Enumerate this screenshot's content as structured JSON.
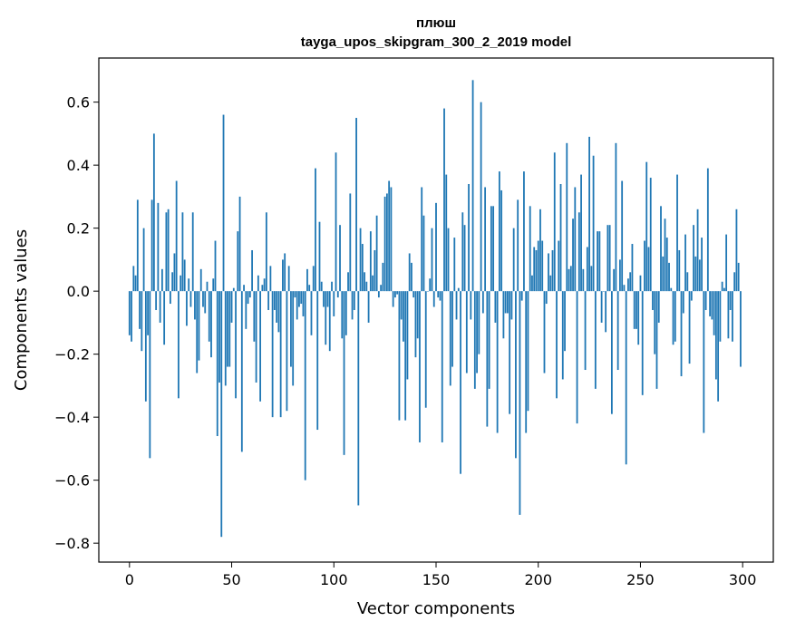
{
  "chart_data": {
    "type": "bar",
    "title": "плюш",
    "subtitle": "tayga_upos_skipgram_300_2_2019 model",
    "xlabel": "Vector components",
    "ylabel": "Components values",
    "xlim": [
      -15,
      315
    ],
    "ylim": [
      -0.86,
      0.74
    ],
    "xticks": [
      0,
      50,
      100,
      150,
      200,
      250,
      300
    ],
    "xtick_labels": [
      "0",
      "50",
      "100",
      "150",
      "200",
      "250",
      "300"
    ],
    "yticks": [
      -0.8,
      -0.6,
      -0.4,
      -0.2,
      0.0,
      0.2,
      0.4,
      0.6
    ],
    "ytick_labels": [
      "−0.8",
      "−0.6",
      "−0.4",
      "−0.2",
      "0.0",
      "0.2",
      "0.4",
      "0.6"
    ],
    "grid": false,
    "color": "#1f77b4",
    "x_start": 0,
    "values": [
      -0.14,
      -0.16,
      0.08,
      0.05,
      0.29,
      -0.12,
      -0.19,
      0.2,
      -0.35,
      -0.14,
      -0.53,
      0.29,
      0.5,
      -0.06,
      0.28,
      -0.1,
      0.07,
      -0.17,
      0.25,
      0.26,
      -0.04,
      0.06,
      0.12,
      0.35,
      -0.34,
      0.05,
      0.25,
      0.1,
      -0.11,
      0.04,
      -0.05,
      0.25,
      -0.09,
      -0.26,
      -0.22,
      0.07,
      -0.05,
      -0.07,
      0.03,
      -0.16,
      -0.21,
      0.04,
      0.16,
      -0.46,
      -0.29,
      -0.78,
      0.56,
      -0.3,
      -0.24,
      -0.24,
      -0.1,
      0.01,
      -0.34,
      0.19,
      0.3,
      -0.51,
      0.02,
      -0.12,
      -0.04,
      -0.02,
      0.13,
      -0.16,
      -0.29,
      0.05,
      -0.35,
      0.02,
      0.04,
      0.25,
      -0.06,
      0.08,
      -0.4,
      -0.06,
      -0.1,
      -0.13,
      -0.4,
      0.1,
      0.12,
      -0.38,
      0.08,
      -0.24,
      -0.3,
      -0.02,
      -0.09,
      -0.05,
      -0.04,
      -0.08,
      -0.6,
      0.07,
      0.02,
      -0.14,
      0.08,
      0.39,
      -0.44,
      0.22,
      0.03,
      -0.05,
      -0.17,
      -0.05,
      -0.19,
      0.03,
      -0.08,
      0.44,
      -0.02,
      0.21,
      -0.15,
      -0.52,
      -0.14,
      0.06,
      0.31,
      -0.09,
      -0.06,
      0.55,
      -0.68,
      0.2,
      0.15,
      0.06,
      0.03,
      -0.1,
      0.19,
      0.05,
      0.13,
      0.24,
      -0.02,
      0.02,
      0.09,
      0.3,
      0.31,
      0.35,
      0.33,
      -0.05,
      -0.02,
      -0.01,
      -0.41,
      -0.09,
      -0.16,
      -0.41,
      -0.28,
      0.12,
      0.09,
      -0.02,
      -0.21,
      -0.15,
      -0.48,
      0.33,
      0.24,
      -0.37,
      0.0,
      0.04,
      0.2,
      -0.05,
      0.28,
      -0.02,
      -0.03,
      -0.48,
      0.58,
      0.37,
      0.2,
      -0.3,
      -0.24,
      0.17,
      -0.09,
      0.01,
      -0.58,
      0.25,
      0.21,
      -0.26,
      0.34,
      -0.09,
      0.67,
      -0.31,
      -0.26,
      -0.2,
      0.6,
      -0.07,
      0.33,
      -0.43,
      -0.31,
      0.27,
      0.27,
      -0.1,
      -0.45,
      0.38,
      0.32,
      -0.15,
      -0.07,
      -0.07,
      -0.39,
      -0.09,
      0.2,
      -0.53,
      0.29,
      -0.71,
      -0.03,
      0.38,
      -0.45,
      -0.38,
      0.27,
      0.05,
      0.14,
      0.13,
      0.16,
      0.26,
      0.16,
      -0.26,
      -0.04,
      0.12,
      0.05,
      0.13,
      0.44,
      -0.34,
      0.16,
      0.34,
      -0.28,
      -0.19,
      0.47,
      0.07,
      0.08,
      0.23,
      0.33,
      -0.42,
      0.25,
      0.37,
      0.07,
      -0.25,
      0.14,
      0.49,
      0.08,
      0.43,
      -0.31,
      0.19,
      0.19,
      -0.1,
      0.0,
      -0.13,
      0.21,
      0.21,
      -0.39,
      0.07,
      0.47,
      -0.25,
      0.1,
      0.35,
      0.02,
      -0.55,
      0.04,
      0.06,
      0.15,
      -0.12,
      -0.12,
      -0.17,
      0.05,
      -0.33,
      0.16,
      0.41,
      0.14,
      0.36,
      -0.06,
      -0.2,
      -0.31,
      -0.1,
      0.27,
      0.11,
      0.23,
      0.17,
      0.09,
      0.01,
      -0.17,
      -0.16,
      0.37,
      0.13,
      -0.27,
      -0.07,
      0.18,
      0.06,
      -0.23,
      -0.03,
      0.21,
      0.11,
      0.26,
      0.1,
      0.17,
      -0.45,
      -0.06,
      0.39,
      -0.08,
      -0.09,
      -0.14,
      -0.28,
      -0.35,
      -0.16,
      0.03,
      0.01,
      0.18,
      -0.15,
      -0.06,
      -0.16,
      0.06,
      0.26,
      0.09,
      -0.24
    ]
  }
}
